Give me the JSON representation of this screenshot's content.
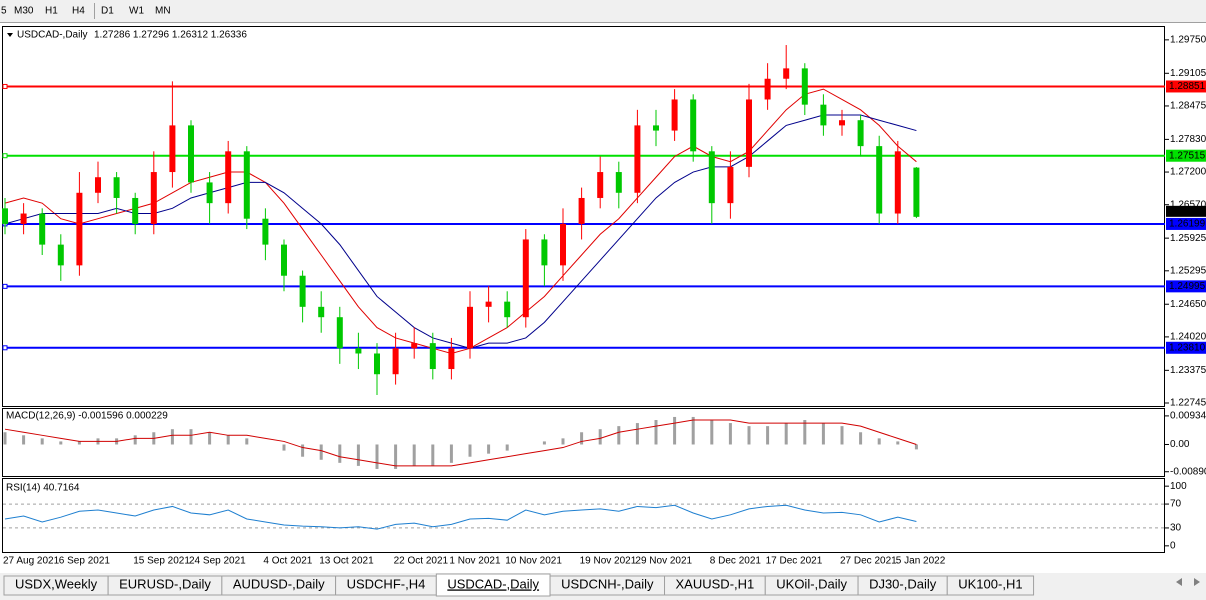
{
  "toolbar": {
    "timeframes": [
      "5",
      "M30",
      "H1",
      "H4",
      "D1",
      "W1",
      "MN"
    ]
  },
  "chart_data": [
    {
      "type": "candlestick",
      "title": "USDCAD-,Daily",
      "quote": "1.27286 1.27296 1.26312 1.26336",
      "categories": [
        "27 Aug 2021",
        null,
        null,
        "6 Sep 2021",
        null,
        null,
        null,
        "15 Sep 2021",
        null,
        null,
        "24 Sep 2021",
        null,
        null,
        null,
        "4 Oct 2021",
        null,
        null,
        "13 Oct 2021",
        null,
        null,
        null,
        "22 Oct 2021",
        null,
        null,
        "1 Nov 2021",
        null,
        null,
        "10 Nov 2021",
        null,
        null,
        null,
        "19 Nov 2021",
        null,
        null,
        "29 Nov 2021",
        null,
        null,
        null,
        "8 Dec 2021",
        null,
        null,
        "17 Dec 2021",
        null,
        null,
        null,
        "27 Dec 2021",
        null,
        null,
        "5 Jan 2022",
        null
      ],
      "open": [
        1.265,
        1.262,
        1.264,
        1.258,
        1.254,
        1.268,
        1.271,
        1.267,
        1.262,
        1.272,
        1.281,
        1.27,
        1.266,
        1.276,
        1.263,
        1.258,
        1.252,
        1.246,
        1.244,
        1.238,
        1.237,
        1.233,
        1.238,
        1.239,
        1.234,
        1.238,
        1.246,
        1.247,
        1.244,
        1.259,
        1.254,
        1.262,
        1.267,
        1.272,
        1.268,
        1.281,
        1.28,
        1.286,
        1.276,
        1.266,
        1.273,
        1.286,
        1.29,
        1.292,
        1.285,
        1.281,
        1.282,
        1.277,
        1.264,
        1.27286
      ],
      "high": [
        1.267,
        1.266,
        1.265,
        1.26,
        1.272,
        1.274,
        1.272,
        1.268,
        1.276,
        1.2895,
        1.282,
        1.272,
        1.278,
        1.277,
        1.265,
        1.259,
        1.253,
        1.249,
        1.246,
        1.241,
        1.239,
        1.241,
        1.242,
        1.241,
        1.24,
        1.249,
        1.25,
        1.249,
        1.261,
        1.26,
        1.265,
        1.269,
        1.275,
        1.274,
        1.284,
        1.284,
        1.288,
        1.287,
        1.277,
        1.276,
        1.289,
        1.293,
        1.2965,
        1.293,
        1.287,
        1.284,
        1.283,
        1.279,
        1.278,
        1.27296
      ],
      "low": [
        1.26,
        1.26,
        1.256,
        1.251,
        1.252,
        1.266,
        1.264,
        1.26,
        1.26,
        1.269,
        1.268,
        1.262,
        1.264,
        1.261,
        1.255,
        1.249,
        1.243,
        1.241,
        1.235,
        1.234,
        1.229,
        1.231,
        1.236,
        1.232,
        1.232,
        1.236,
        1.243,
        1.242,
        1.242,
        1.25,
        1.251,
        1.259,
        1.265,
        1.265,
        1.266,
        1.277,
        1.278,
        1.274,
        1.262,
        1.263,
        1.271,
        1.284,
        1.288,
        1.283,
        1.279,
        1.279,
        1.275,
        1.262,
        1.262,
        1.26312
      ],
      "close": [
        1.262,
        1.264,
        1.258,
        1.254,
        1.268,
        1.271,
        1.267,
        1.262,
        1.272,
        1.281,
        1.27,
        1.266,
        1.276,
        1.263,
        1.258,
        1.252,
        1.246,
        1.244,
        1.238,
        1.237,
        1.233,
        1.238,
        1.239,
        1.234,
        1.238,
        1.246,
        1.247,
        1.244,
        1.259,
        1.254,
        1.262,
        1.267,
        1.272,
        1.268,
        1.281,
        1.28,
        1.286,
        1.276,
        1.266,
        1.273,
        1.286,
        1.29,
        1.292,
        1.285,
        1.281,
        1.282,
        1.277,
        1.264,
        1.276,
        1.26336
      ],
      "up_color": "#ff0000",
      "down_color": "#00c800",
      "lines": [
        {
          "color": "#e00000",
          "values": [
            1.266,
            1.267,
            1.266,
            1.263,
            1.262,
            1.263,
            1.264,
            1.265,
            1.266,
            1.268,
            1.27,
            1.271,
            1.272,
            1.272,
            1.27,
            1.266,
            1.261,
            1.256,
            1.251,
            1.246,
            1.242,
            1.24,
            1.239,
            1.238,
            1.237,
            1.238,
            1.24,
            1.242,
            1.245,
            1.248,
            1.252,
            1.256,
            1.26,
            1.263,
            1.267,
            1.271,
            1.275,
            1.277,
            1.275,
            1.274,
            1.276,
            1.28,
            1.284,
            1.287,
            1.288,
            1.286,
            1.284,
            1.281,
            1.277,
            1.274
          ]
        },
        {
          "color": "#00008b",
          "values": [
            1.262,
            1.263,
            1.264,
            1.264,
            1.264,
            1.264,
            1.265,
            1.264,
            1.264,
            1.265,
            1.267,
            1.268,
            1.269,
            1.27,
            1.27,
            1.268,
            1.265,
            1.262,
            1.258,
            1.253,
            1.248,
            1.245,
            1.242,
            1.24,
            1.239,
            1.238,
            1.239,
            1.239,
            1.24,
            1.243,
            1.247,
            1.251,
            1.255,
            1.259,
            1.263,
            1.267,
            1.27,
            1.272,
            1.273,
            1.273,
            1.275,
            1.278,
            1.281,
            1.282,
            1.283,
            1.283,
            1.283,
            1.282,
            1.281,
            1.28
          ]
        }
      ],
      "levels": [
        {
          "price": 1.28851,
          "color": "#ff0000"
        },
        {
          "price": 1.27515,
          "color": "#00e000"
        },
        {
          "price": 1.26199,
          "color": "#0000ff"
        },
        {
          "price": 1.24995,
          "color": "#0000ff"
        },
        {
          "price": {
            "value": 1.2381,
            "label": "1.23810"
          },
          "color": "#0000ff"
        }
      ],
      "last": 1.26336,
      "ylim": [
        1.22687,
        1.29998
      ],
      "yticks": [
        {
          "value": 1.2975,
          "label": "1.29750"
        },
        1.29105,
        1.28475,
        {
          "value": 1.2783,
          "label": "1.27830"
        },
        {
          "value": 1.272,
          "label": "1.27200"
        },
        {
          "value": 1.2657,
          "label": "1.26570"
        },
        1.25925,
        1.25295,
        {
          "value": 1.2465,
          "label": "1.24650"
        },
        {
          "value": 1.2402,
          "label": "1.24020"
        },
        1.23375,
        1.22745
      ]
    },
    {
      "type": "macd",
      "title": "MACD(12,26,9) -0.001596 0.000229",
      "histogram": {
        "color": "#a0a0a0",
        "values": [
          0.004,
          0.003,
          0.002,
          0.001,
          0.001,
          0.002,
          0.002,
          0.003,
          0.004,
          0.005,
          0.005,
          0.004,
          0.003,
          0.002,
          0.0,
          -0.002,
          -0.004,
          -0.005,
          -0.006,
          -0.007,
          -0.008,
          -0.008,
          -0.007,
          -0.007,
          -0.006,
          -0.004,
          -0.003,
          -0.002,
          0.0,
          0.001,
          0.002,
          0.004,
          0.005,
          0.006,
          0.007,
          0.008,
          0.009,
          0.009,
          0.008,
          0.007,
          0.006,
          0.006,
          0.007,
          0.008,
          0.007,
          0.006,
          0.004,
          0.002,
          0.001,
          -0.0016
        ]
      },
      "signal": {
        "color": "#d00000",
        "values": [
          0.005,
          0.004,
          0.003,
          0.002,
          0.001,
          0.001,
          0.001,
          0.002,
          0.002,
          0.003,
          0.003,
          0.004,
          0.003,
          0.003,
          0.002,
          0.001,
          -0.001,
          -0.002,
          -0.004,
          -0.005,
          -0.006,
          -0.007,
          -0.007,
          -0.007,
          -0.007,
          -0.006,
          -0.005,
          -0.004,
          -0.003,
          -0.002,
          -0.001,
          0.001,
          0.002,
          0.004,
          0.005,
          0.006,
          0.007,
          0.008,
          0.008,
          0.008,
          0.007,
          0.007,
          0.007,
          0.007,
          0.007,
          0.007,
          0.006,
          0.004,
          0.002,
          0.0
        ]
      },
      "ylim": [
        -0.01063,
        0.0116
      ],
      "yticks": [
        0.009345,
        {
          "value": 0,
          "label": "0.00"
        },
        -0.008905
      ]
    },
    {
      "type": "line",
      "title": "RSI(14) 40.7164",
      "color": "#1e7fd0",
      "values": [
        45,
        50,
        40,
        48,
        58,
        60,
        55,
        50,
        60,
        66,
        55,
        52,
        60,
        45,
        40,
        35,
        33,
        32,
        30,
        32,
        28,
        36,
        38,
        32,
        36,
        45,
        46,
        43,
        60,
        52,
        58,
        60,
        62,
        58,
        66,
        64,
        68,
        55,
        45,
        52,
        62,
        66,
        68,
        60,
        55,
        56,
        52,
        40,
        48,
        40.7164
      ],
      "levels": [
        70,
        30
      ],
      "ylim": [
        -12,
        112
      ],
      "yticks": [
        100,
        70,
        30,
        0
      ]
    }
  ],
  "tabs": {
    "items": [
      "USDX,Weekly",
      "EURUSD-,Daily",
      "AUDUSD-,Daily",
      "USDCHF-,H4",
      "USDCAD-,Daily",
      "USDCNH-,Daily",
      "XAUUSD-,H1",
      "UKOil-,Daily",
      "DJ30-,Daily",
      "UK100-,H1"
    ],
    "active": "USDCAD-,Daily"
  }
}
